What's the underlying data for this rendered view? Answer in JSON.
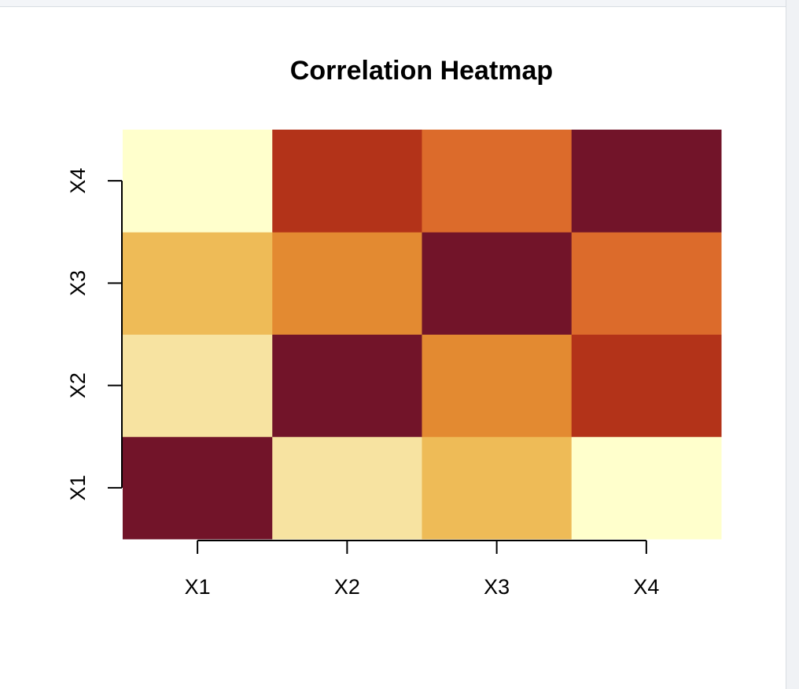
{
  "chart_data": {
    "type": "heatmap",
    "title": "Correlation Heatmap",
    "xlabel": "",
    "ylabel": "",
    "x_categories": [
      "X1",
      "X2",
      "X3",
      "X4"
    ],
    "y_categories": [
      "X1",
      "X2",
      "X3",
      "X4"
    ],
    "values": [
      [
        1.0,
        0.3,
        0.5,
        0.1
      ],
      [
        0.3,
        1.0,
        0.7,
        0.85
      ],
      [
        0.5,
        0.7,
        1.0,
        0.75
      ],
      [
        0.1,
        0.85,
        0.75,
        1.0
      ]
    ],
    "color_scale": [
      {
        "value": 0.1,
        "color": "#FFFFCC"
      },
      {
        "value": 0.3,
        "color": "#F7E3A1"
      },
      {
        "value": 0.5,
        "color": "#EEBB57"
      },
      {
        "value": 0.7,
        "color": "#E38A31"
      },
      {
        "value": 0.75,
        "color": "#DC6B2B"
      },
      {
        "value": 0.85,
        "color": "#B33319"
      },
      {
        "value": 1.0,
        "color": "#721429"
      }
    ],
    "axis_color": "#000000",
    "grid": false,
    "legend": "none"
  }
}
